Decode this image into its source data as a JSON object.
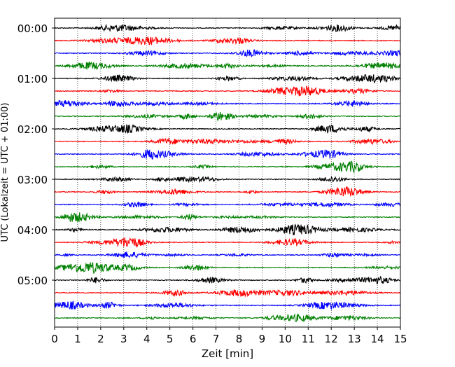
{
  "chart_data": {
    "type": "line",
    "title": "",
    "xlabel": "Zeit  [min]",
    "ylabel": "UTC (Lokalzeit = UTC + 01:00)",
    "xlim": [
      0,
      15
    ],
    "x_ticks": [
      "0",
      "1",
      "2",
      "3",
      "4",
      "5",
      "6",
      "7",
      "8",
      "9",
      "10",
      "11",
      "12",
      "13",
      "14",
      "15"
    ],
    "y_tick_labels": [
      "00:00",
      "01:00",
      "02:00",
      "03:00",
      "04:00",
      "05:00"
    ],
    "trace_interval_minutes": 15,
    "trace_count": 24,
    "color_cycle": [
      "#000000",
      "#ff0000",
      "#0000ff",
      "#008000"
    ],
    "vertical_grid": "dotted at each minute",
    "legend": "none"
  }
}
